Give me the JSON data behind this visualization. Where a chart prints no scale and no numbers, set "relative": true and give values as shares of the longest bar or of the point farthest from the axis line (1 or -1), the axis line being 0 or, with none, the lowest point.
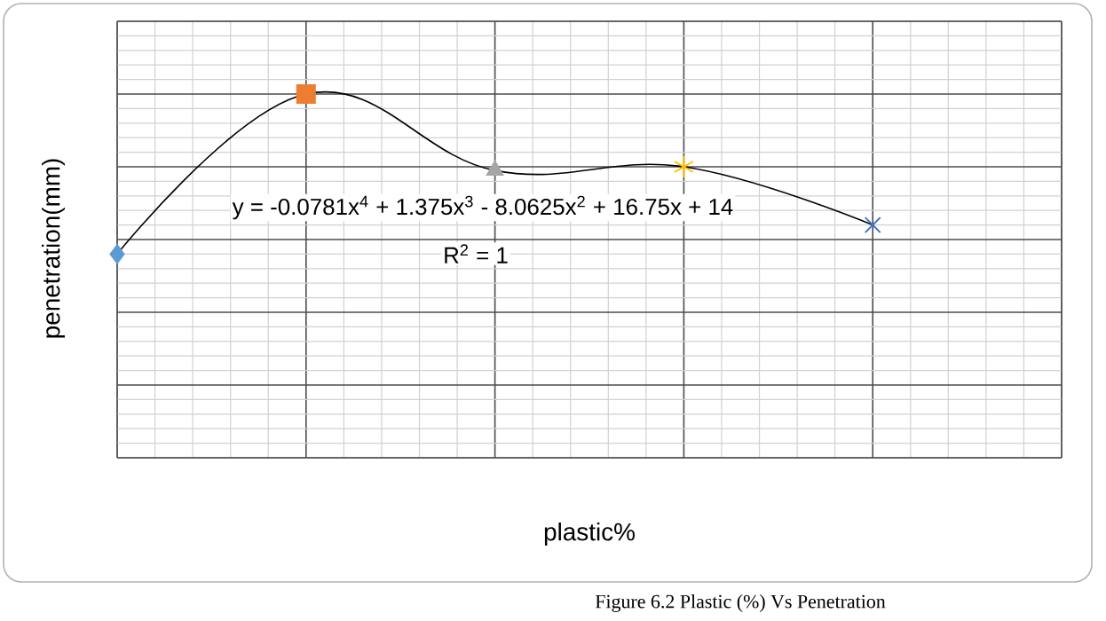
{
  "chart_data": {
    "type": "line",
    "relative": true,
    "xlabel": "plastic%",
    "ylabel": "penetration(mm)",
    "annotations": [
      "y = -0.0781x$^{4}$ + 1.375x$^{3}$ - 8.0625x$^{2}$ + 16.75x + 14",
      "R$^{2}$ = 1",
      "Figure 6.2 Plastic (%) Vs Penetration"
    ],
    "categories": [
      null,
      null,
      null,
      null,
      null
    ],
    "series": [
      {
        "color": "#000000",
        "colors": [
          "#5b9bd5",
          "#ed7d31",
          "#a5a5a5",
          "#ffc000",
          "#4472c4"
        ],
        "marker": "diamond",
        "values": [
          0.56,
          1,
          0.79,
          0.8,
          0.64
        ]
      }
    ],
    "grid": true
  }
}
